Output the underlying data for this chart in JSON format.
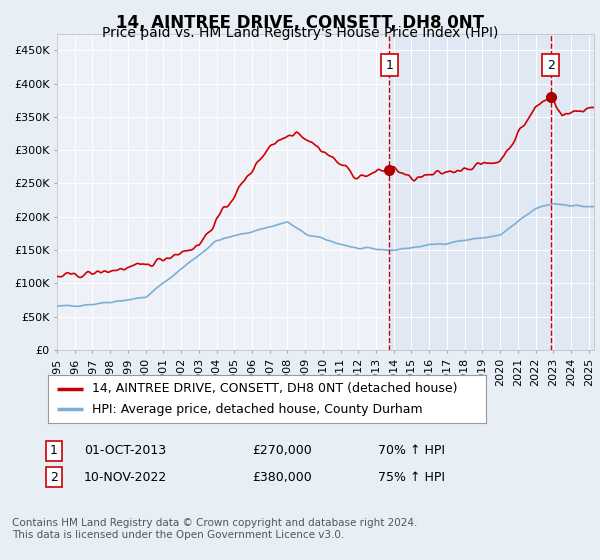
{
  "title": "14, AINTREE DRIVE, CONSETT, DH8 0NT",
  "subtitle": "Price paid vs. HM Land Registry's House Price Index (HPI)",
  "ylim": [
    0,
    475000
  ],
  "yticks": [
    0,
    50000,
    100000,
    150000,
    200000,
    250000,
    300000,
    350000,
    400000,
    450000
  ],
  "ytick_labels": [
    "£0",
    "£50K",
    "£100K",
    "£150K",
    "£200K",
    "£250K",
    "£300K",
    "£350K",
    "£400K",
    "£450K"
  ],
  "bg_color": "#e8eef5",
  "plot_bg_color": "#eef2f8",
  "grid_color": "#ffffff",
  "red_line_color": "#cc0000",
  "blue_line_color": "#7bafd4",
  "marker_color": "#aa0000",
  "dashed_line_color": "#cc0000",
  "shade_color": "#c8d8ec",
  "sale1_date_num": 2013.75,
  "sale1_price": 270000,
  "sale1_label": "1",
  "sale2_date_num": 2022.86,
  "sale2_price": 380000,
  "sale2_label": "2",
  "legend_label_red": "14, AINTREE DRIVE, CONSETT, DH8 0NT (detached house)",
  "legend_label_blue": "HPI: Average price, detached house, County Durham",
  "annotation1_date": "01-OCT-2013",
  "annotation1_price": "£270,000",
  "annotation1_hpi": "70% ↑ HPI",
  "annotation2_date": "10-NOV-2022",
  "annotation2_price": "£380,000",
  "annotation2_hpi": "75% ↑ HPI",
  "footer": "Contains HM Land Registry data © Crown copyright and database right 2024.\nThis data is licensed under the Open Government Licence v3.0.",
  "title_fontsize": 12,
  "subtitle_fontsize": 10,
  "tick_fontsize": 8,
  "legend_fontsize": 9,
  "annotation_fontsize": 9,
  "footer_fontsize": 7.5,
  "xlim_left": 1995,
  "xlim_right": 2025.3
}
